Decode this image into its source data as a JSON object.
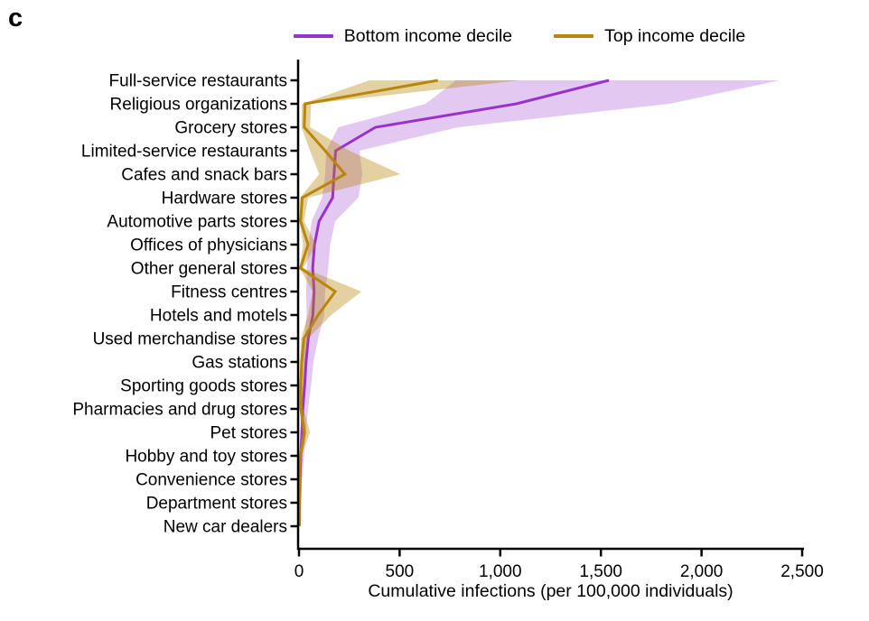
{
  "panel_label": "c",
  "legend": {
    "items": [
      {
        "label": "Bottom income decile",
        "color": "#9932CC"
      },
      {
        "label": "Top income decile",
        "color": "#B8860B"
      }
    ]
  },
  "xlabel": "Cumulative infections (per 100,000 individuals)",
  "chart_data": {
    "type": "line",
    "orientation": "horizontal-category",
    "title": "",
    "xlabel": "Cumulative infections (per 100,000 individuals)",
    "ylabel": "",
    "xlim": [
      0,
      2500
    ],
    "x_ticks": [
      0,
      500,
      1000,
      1500,
      2000,
      2500
    ],
    "x_tick_labels": [
      "0",
      "500",
      "1,000",
      "1,500",
      "2,000",
      "2,500"
    ],
    "grid": false,
    "legend_position": "top-center",
    "categories": [
      "Full-service restaurants",
      "Religious organizations",
      "Grocery stores",
      "Limited-service restaurants",
      "Cafes and snack bars",
      "Hardware stores",
      "Automotive parts stores",
      "Offices of physicians",
      "Other general stores",
      "Fitness centres",
      "Hotels and motels",
      "Used merchandise stores",
      "Gas stations",
      "Sporting goods stores",
      "Pharmacies and drug stores",
      "Pet stores",
      "Hobby and toy stores",
      "Convenience stores",
      "Department stores",
      "New car dealers"
    ],
    "series": [
      {
        "name": "Bottom income decile",
        "color": "#9932CC",
        "band_color": "rgba(153,50,204,0.27)",
        "values": [
          1540,
          1080,
          380,
          182,
          174,
          167,
          100,
          77,
          68,
          75,
          69,
          46,
          35,
          28,
          19,
          14,
          9,
          5,
          3,
          2
        ],
        "band_low": [
          780,
          630,
          195,
          135,
          130,
          115,
          63,
          46,
          40,
          35,
          38,
          27,
          20,
          16,
          11,
          8,
          5,
          3,
          2,
          1
        ],
        "band_high": [
          2390,
          1840,
          790,
          300,
          315,
          295,
          180,
          155,
          145,
          130,
          125,
          95,
          72,
          60,
          45,
          34,
          25,
          16,
          10,
          6
        ]
      },
      {
        "name": "Top income decile",
        "color": "#B8860B",
        "band_color": "rgba(184,134,11,0.38)",
        "values": [
          690,
          30,
          26,
          130,
          228,
          16,
          8,
          45,
          7,
          180,
          95,
          24,
          13,
          9,
          9,
          28,
          6,
          3,
          2,
          1
        ],
        "band_low": [
          350,
          14,
          12,
          55,
          100,
          6,
          3,
          20,
          3,
          68,
          45,
          10,
          6,
          4,
          4,
          12,
          2,
          1,
          1,
          0
        ],
        "band_high": [
          1100,
          60,
          55,
          250,
          505,
          45,
          25,
          85,
          22,
          310,
          160,
          45,
          28,
          20,
          20,
          55,
          13,
          8,
          5,
          3
        ]
      }
    ]
  }
}
